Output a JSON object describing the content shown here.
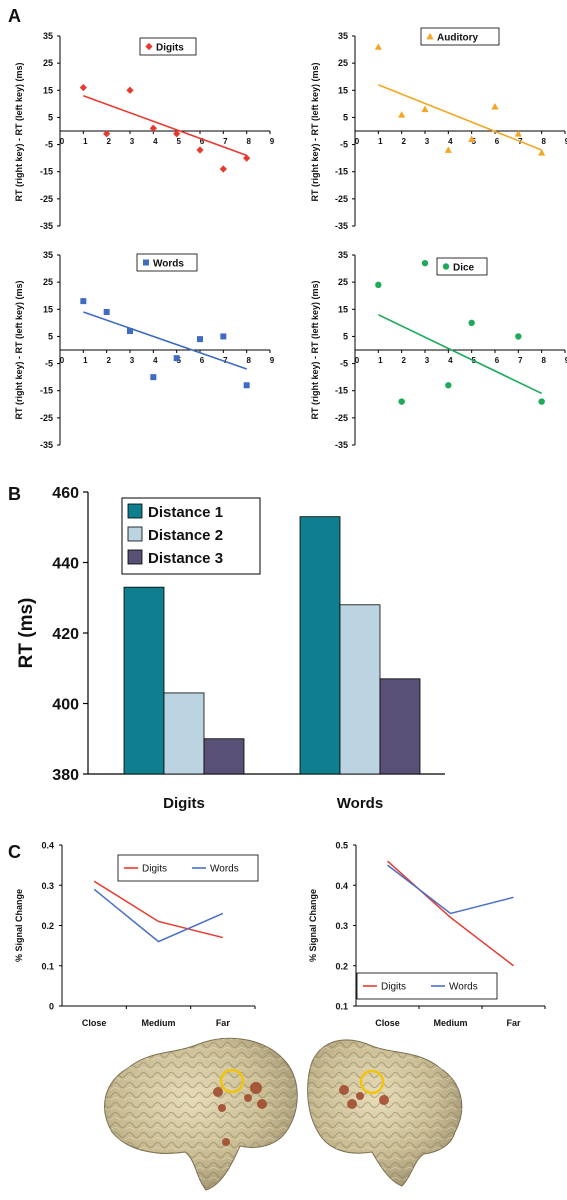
{
  "panels": {
    "a_label": "A",
    "b_label": "B",
    "c_label": "C"
  },
  "scatter_ylabel": "RT (right key) - RT (left key) (ms)",
  "chart_data": [
    {
      "id": "a-digits",
      "type": "scatter",
      "legend": "Digits",
      "color": "#e8392e",
      "marker": "diamond",
      "xlim": [
        0,
        9
      ],
      "ylim": [
        -35,
        35
      ],
      "xticks": [
        "0",
        "1",
        "2",
        "3",
        "4",
        "5",
        "6",
        "7",
        "8",
        "9"
      ],
      "yticks": [
        "35",
        "25",
        "15",
        "5",
        "-5",
        "-15",
        "-25",
        "-35"
      ],
      "points": [
        [
          1,
          16
        ],
        [
          2,
          -1
        ],
        [
          3,
          15
        ],
        [
          4,
          1
        ],
        [
          5,
          -1
        ],
        [
          6,
          -7
        ],
        [
          7,
          -14
        ],
        [
          8,
          -10
        ]
      ],
      "trend": [
        [
          1,
          13
        ],
        [
          8,
          -9
        ]
      ]
    },
    {
      "id": "a-auditory",
      "type": "scatter",
      "legend": "Auditory",
      "color": "#f5a623",
      "marker": "triangle",
      "xlim": [
        0,
        9
      ],
      "ylim": [
        -35,
        35
      ],
      "xticks": [
        "0",
        "1",
        "2",
        "3",
        "4",
        "5",
        "6",
        "7",
        "8",
        "9"
      ],
      "yticks": [
        "35",
        "25",
        "15",
        "5",
        "-5",
        "-15",
        "-25",
        "-35"
      ],
      "points": [
        [
          1,
          31
        ],
        [
          2,
          6
        ],
        [
          3,
          8
        ],
        [
          4,
          -7
        ],
        [
          5,
          -3
        ],
        [
          6,
          9
        ],
        [
          7,
          -1
        ],
        [
          8,
          -8
        ]
      ],
      "trend": [
        [
          1,
          17
        ],
        [
          8,
          -7
        ]
      ]
    },
    {
      "id": "a-words",
      "type": "scatter",
      "legend": "Words",
      "color": "#3f6cc2",
      "marker": "square",
      "xlim": [
        0,
        9
      ],
      "ylim": [
        -35,
        35
      ],
      "xticks": [
        "0",
        "1",
        "2",
        "3",
        "4",
        "5",
        "6",
        "7",
        "8",
        "9"
      ],
      "yticks": [
        "35",
        "25",
        "15",
        "5",
        "-5",
        "-15",
        "-25",
        "-35"
      ],
      "points": [
        [
          1,
          18
        ],
        [
          2,
          14
        ],
        [
          3,
          7
        ],
        [
          4,
          -10
        ],
        [
          5,
          -3
        ],
        [
          6,
          4
        ],
        [
          7,
          5
        ],
        [
          8,
          -13
        ]
      ],
      "trend": [
        [
          1,
          14
        ],
        [
          8,
          -7
        ]
      ]
    },
    {
      "id": "a-dice",
      "type": "scatter",
      "legend": "Dice",
      "color": "#1daa5a",
      "marker": "circle",
      "xlim": [
        0,
        9
      ],
      "ylim": [
        -35,
        35
      ],
      "xticks": [
        "0",
        "1",
        "2",
        "3",
        "4",
        "5",
        "6",
        "7",
        "8",
        "9"
      ],
      "yticks": [
        "35",
        "25",
        "15",
        "5",
        "-5",
        "-15",
        "-25",
        "-35"
      ],
      "points": [
        [
          1,
          24
        ],
        [
          2,
          -19
        ],
        [
          3,
          32
        ],
        [
          4,
          -13
        ],
        [
          5,
          10
        ],
        [
          7,
          5
        ],
        [
          8,
          -19
        ]
      ],
      "trend": [
        [
          1,
          13
        ],
        [
          8,
          -16
        ]
      ]
    },
    {
      "id": "b-rt",
      "type": "bar",
      "categories": [
        "Digits",
        "Words"
      ],
      "ylabel": "RT (ms)",
      "ylim": [
        380,
        460
      ],
      "yticks": [
        "460",
        "440",
        "420",
        "400",
        "380"
      ],
      "series": [
        {
          "name": "Distance 1",
          "color": "#0f7e8e",
          "values": [
            433,
            453
          ]
        },
        {
          "name": "Distance 2",
          "color": "#bcd4e2",
          "values": [
            403,
            428
          ]
        },
        {
          "name": "Distance 3",
          "color": "#585075",
          "values": [
            390,
            407
          ]
        }
      ]
    },
    {
      "id": "c-left",
      "type": "line",
      "categories": [
        "Close",
        "Medium",
        "Far"
      ],
      "ylabel": "% Signal Change",
      "ylim": [
        0,
        0.4
      ],
      "yticks": [
        "0.4",
        "0.3",
        "0.2",
        "0.1",
        "0"
      ],
      "series": [
        {
          "name": "Digits",
          "color": "#e8392e",
          "values": [
            0.31,
            0.21,
            0.17
          ]
        },
        {
          "name": "Words",
          "color": "#4a6fc8",
          "values": [
            0.29,
            0.16,
            0.23
          ]
        }
      ]
    },
    {
      "id": "c-right",
      "type": "line",
      "categories": [
        "Close",
        "Medium",
        "Far"
      ],
      "ylabel": "% Signal Change",
      "ylim": [
        0.1,
        0.5
      ],
      "yticks": [
        "0.5",
        "0.4",
        "0.3",
        "0.2",
        "0.1"
      ],
      "series": [
        {
          "name": "Digits",
          "color": "#e8392e",
          "values": [
            0.46,
            0.32,
            0.2
          ]
        },
        {
          "name": "Words",
          "color": "#4a6fc8",
          "values": [
            0.45,
            0.33,
            0.37
          ]
        }
      ]
    }
  ]
}
